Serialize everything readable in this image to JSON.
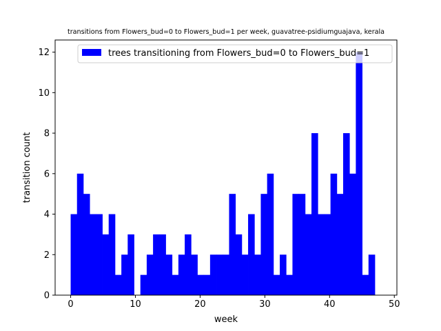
{
  "chart_data": {
    "type": "bar",
    "title": "transitions from Flowers_bud=0 to Flowers_bud=1 per week, guavatree-psidiumguajava, kerala",
    "xlabel": "week",
    "ylabel": "transition count",
    "xlim": [
      -2.4,
      50.4
    ],
    "ylim": [
      0,
      12.6
    ],
    "xticks": [
      0,
      10,
      20,
      30,
      40,
      50
    ],
    "yticks": [
      0,
      2,
      4,
      6,
      8,
      10,
      12
    ],
    "grid": false,
    "legend_position": "top-right",
    "bin_width": 0.979,
    "bin_start": 0,
    "color": "#0000ff",
    "series": [
      {
        "name": "trees transitioning from Flowers_bud=0 to Flowers_bud=1",
        "values": [
          4,
          6,
          5,
          4,
          4,
          3,
          4,
          1,
          2,
          3,
          0,
          1,
          2,
          3,
          3,
          2,
          1,
          2,
          3,
          2,
          1,
          1,
          2,
          2,
          2,
          5,
          3,
          2,
          4,
          2,
          5,
          6,
          1,
          2,
          1,
          5,
          5,
          4,
          8,
          4,
          4,
          6,
          5,
          8,
          6,
          12,
          1,
          2
        ]
      }
    ]
  }
}
